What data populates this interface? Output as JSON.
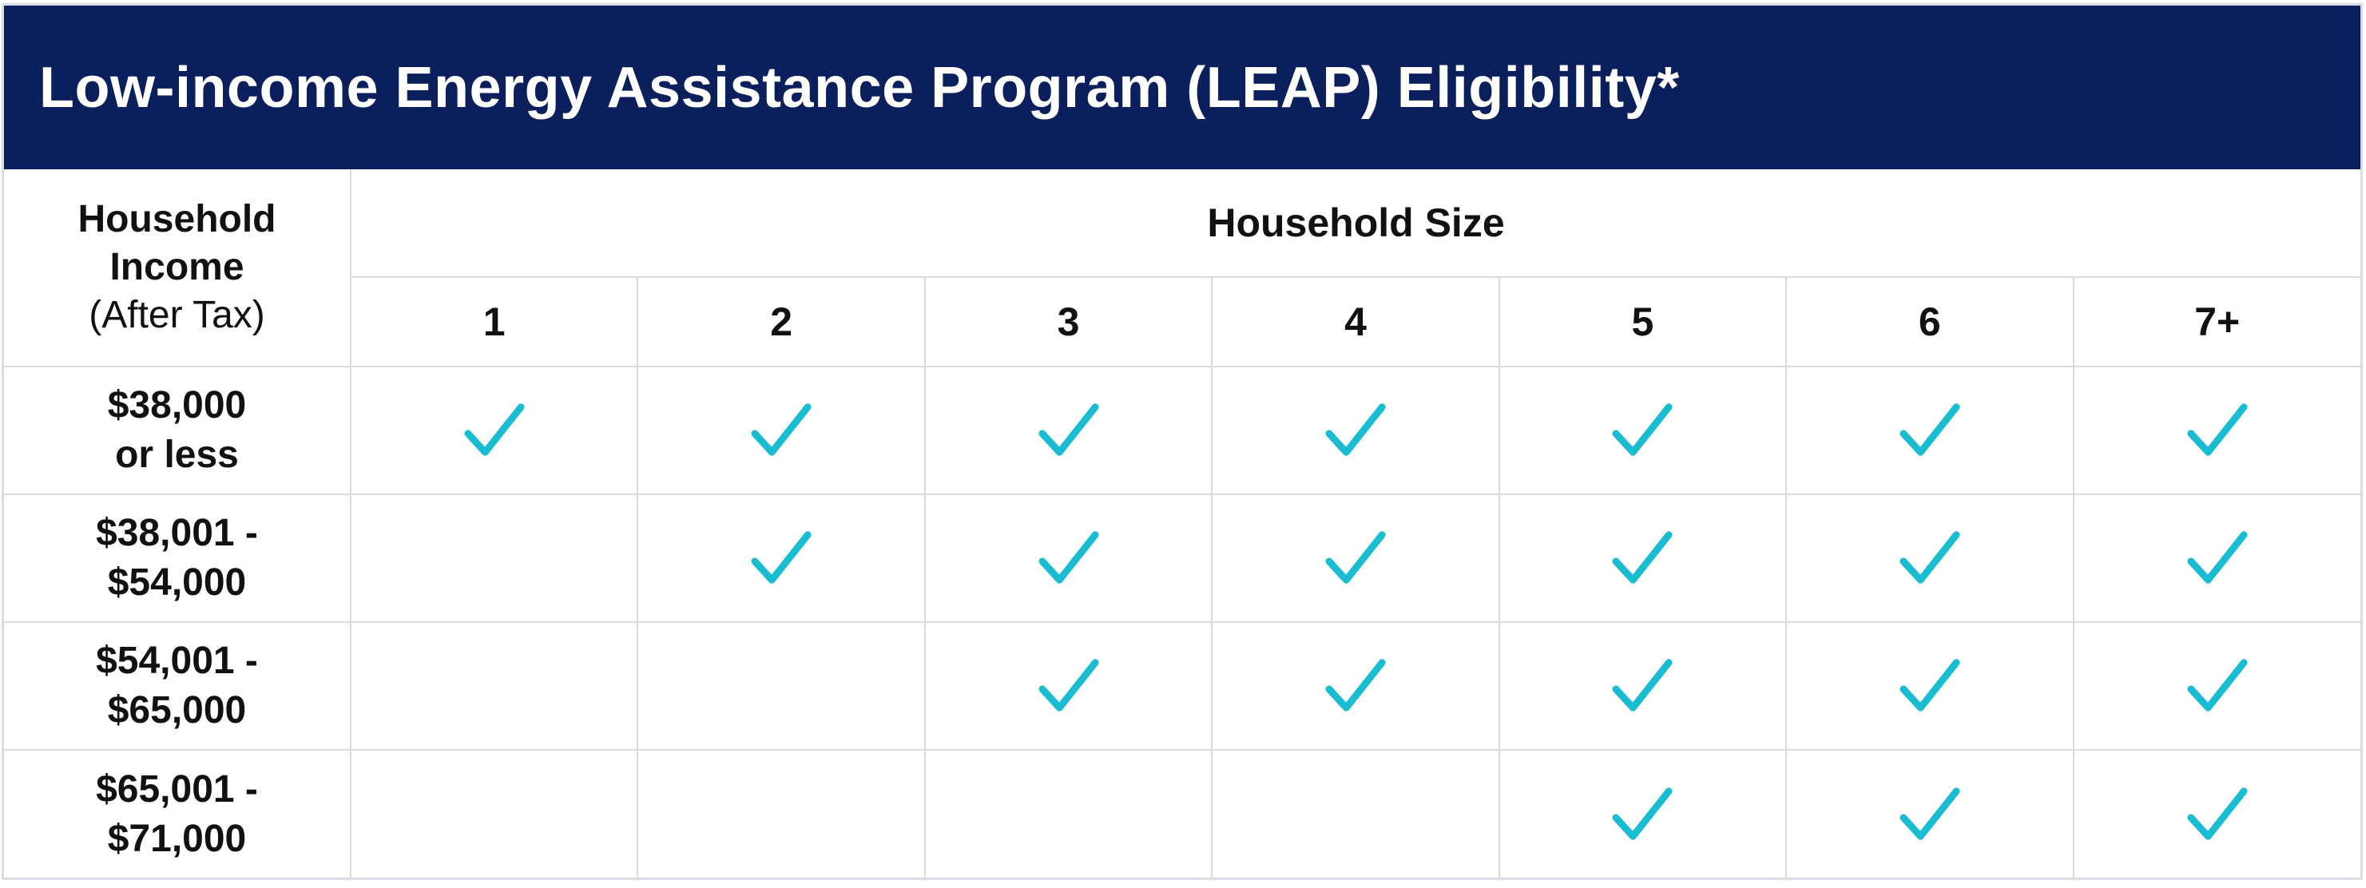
{
  "title": "Low-income Energy Assistance Program (LEAP) Eligibility*",
  "income_header": {
    "line1": "Household",
    "line2": "Income",
    "line3": "(After Tax)"
  },
  "size_header": "Household Size",
  "sizes": [
    "1",
    "2",
    "3",
    "4",
    "5",
    "6",
    "7+"
  ],
  "rows": [
    {
      "line1": "$38,000",
      "line2": "or less",
      "eligible": [
        true,
        true,
        true,
        true,
        true,
        true,
        true
      ]
    },
    {
      "line1": "$38,001 -",
      "line2": "$54,000",
      "eligible": [
        false,
        true,
        true,
        true,
        true,
        true,
        true
      ]
    },
    {
      "line1": "$54,001 -",
      "line2": "$65,000",
      "eligible": [
        false,
        false,
        true,
        true,
        true,
        true,
        true
      ]
    },
    {
      "line1": "$65,001 -",
      "line2": "$71,000",
      "eligible": [
        false,
        false,
        false,
        false,
        true,
        true,
        true
      ]
    }
  ],
  "colors": {
    "header_bg": "#0a1f5c",
    "check": "#19bcd1",
    "grid": "#d9dbe0"
  },
  "icons": {
    "eligible": "checkmark-icon"
  }
}
